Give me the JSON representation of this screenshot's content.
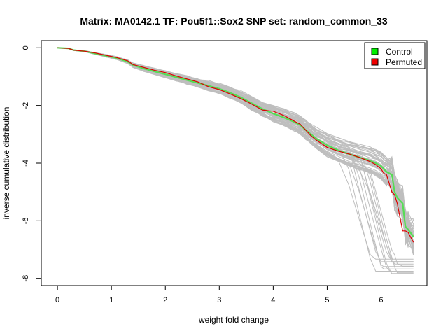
{
  "chart_data": {
    "type": "line",
    "title": "Matrix: MA0142.1 TF: Pou5f1::Sox2 SNP set: random_common_33",
    "xlabel": "weight fold change",
    "ylabel": "inverse cumulative distribution",
    "xlim": [
      -0.3,
      6.85
    ],
    "ylim": [
      -8.25,
      0.25
    ],
    "x_ticks": [
      0,
      1,
      2,
      3,
      4,
      5,
      6
    ],
    "y_ticks": [
      0,
      -2,
      -4,
      -6,
      -8
    ],
    "x_tick_labels": [
      "0",
      "1",
      "2",
      "3",
      "4",
      "5",
      "6"
    ],
    "y_tick_labels": [
      "0",
      "-2",
      "-4",
      "-6",
      "-8"
    ],
    "grid": false,
    "legend_position": "top-right",
    "legend": [
      {
        "label": "Control",
        "color": "#00ee00"
      },
      {
        "label": "Permuted",
        "color": "#ee0000"
      }
    ],
    "colors": {
      "background_lines": "#bebebe",
      "control": "#55dd55",
      "permuted": "#dd0000"
    },
    "background_series_count": 60,
    "series": [
      {
        "name": "Control",
        "x": [
          0,
          0.2,
          0.3,
          0.5,
          0.7,
          0.9,
          1.1,
          1.3,
          1.4,
          1.6,
          1.8,
          2.0,
          2.2,
          2.4,
          2.6,
          2.8,
          3.0,
          3.2,
          3.4,
          3.6,
          3.8,
          4.0,
          4.2,
          4.4,
          4.5,
          4.6,
          4.7,
          4.8,
          5.0,
          5.2,
          5.4,
          5.6,
          5.8,
          5.9,
          6.0,
          6.05,
          6.1,
          6.2,
          6.25,
          6.3,
          6.4,
          6.45,
          6.5,
          6.6
        ],
        "y": [
          0,
          -0.02,
          -0.08,
          -0.12,
          -0.2,
          -0.28,
          -0.36,
          -0.48,
          -0.6,
          -0.72,
          -0.82,
          -0.92,
          -1.02,
          -1.12,
          -1.22,
          -1.32,
          -1.42,
          -1.56,
          -1.72,
          -1.92,
          -2.12,
          -2.28,
          -2.42,
          -2.58,
          -2.68,
          -2.85,
          -3.0,
          -3.15,
          -3.38,
          -3.55,
          -3.68,
          -3.8,
          -3.92,
          -4.0,
          -4.1,
          -4.2,
          -4.3,
          -4.4,
          -5.0,
          -5.2,
          -5.4,
          -6.2,
          -6.3,
          -6.55
        ]
      },
      {
        "name": "Permuted",
        "x": [
          0,
          0.2,
          0.3,
          0.5,
          0.7,
          0.9,
          1.1,
          1.3,
          1.4,
          1.6,
          1.8,
          2.0,
          2.2,
          2.4,
          2.6,
          2.8,
          3.0,
          3.2,
          3.4,
          3.6,
          3.8,
          4.0,
          4.2,
          4.4,
          4.5,
          4.6,
          4.7,
          4.8,
          5.0,
          5.2,
          5.4,
          5.6,
          5.8,
          5.9,
          6.0,
          6.05,
          6.1,
          6.2,
          6.25,
          6.3,
          6.4,
          6.45,
          6.5,
          6.6
        ],
        "y": [
          0,
          -0.02,
          -0.08,
          -0.12,
          -0.18,
          -0.26,
          -0.34,
          -0.45,
          -0.58,
          -0.68,
          -0.78,
          -0.86,
          -0.98,
          -1.08,
          -1.18,
          -1.35,
          -1.45,
          -1.6,
          -1.76,
          -1.95,
          -2.16,
          -2.2,
          -2.35,
          -2.55,
          -2.65,
          -2.85,
          -3.05,
          -3.2,
          -3.45,
          -3.58,
          -3.68,
          -3.8,
          -3.95,
          -4.05,
          -4.2,
          -4.35,
          -4.4,
          -5.0,
          -5.1,
          -5.4,
          -6.35,
          -6.35,
          -6.4,
          -6.75
        ]
      }
    ]
  }
}
